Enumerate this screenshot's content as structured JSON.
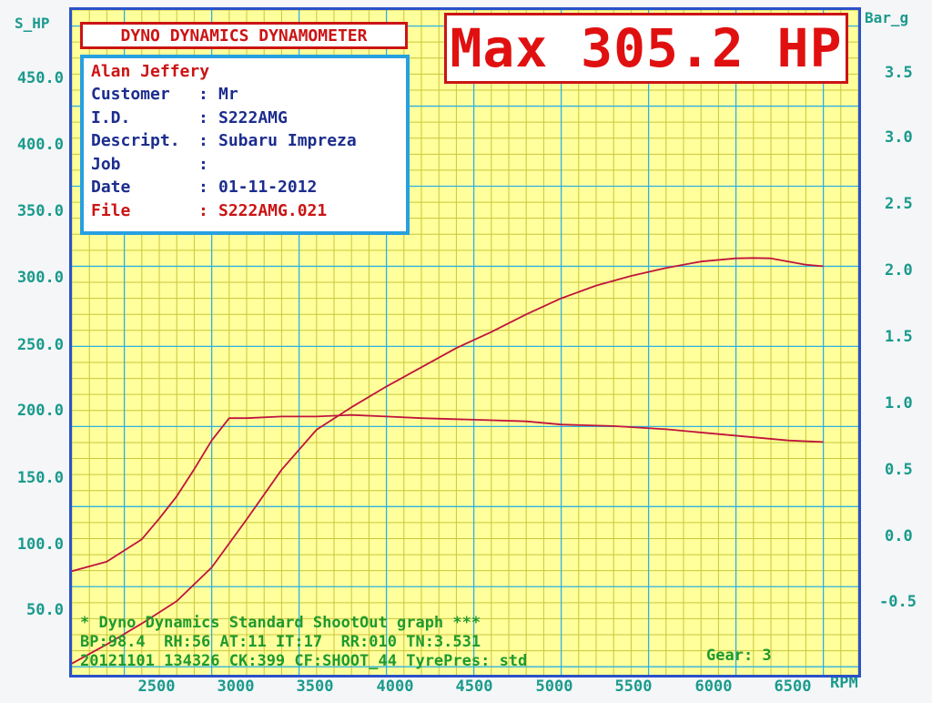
{
  "axes": {
    "left_title": "S_HP",
    "right_title": "Bar_g",
    "bottom_unit": "RPM",
    "left_ticks": [
      "450.0",
      "400.0",
      "350.0",
      "300.0",
      "250.0",
      "200.0",
      "150.0",
      "100.0",
      "50.0"
    ],
    "right_ticks": [
      "3.5",
      "3.0",
      "2.5",
      "2.0",
      "1.5",
      "1.0",
      "0.5",
      "0.0",
      "-0.5"
    ],
    "bottom_ticks": [
      "2500",
      "3000",
      "3500",
      "4000",
      "4500",
      "5000",
      "5500",
      "6000",
      "6500"
    ]
  },
  "header": {
    "title": "DYNO DYNAMICS DYNAMOMETER",
    "max": "Max 305.2 HP"
  },
  "info": {
    "name": "Alan Jeffery",
    "rows": [
      {
        "label": "Customer",
        "sep": ":",
        "value": "Mr"
      },
      {
        "label": "I.D.",
        "sep": ":",
        "value": "S222AMG"
      },
      {
        "label": "Descript.",
        "sep": ":",
        "value": "Subaru Impreza"
      },
      {
        "label": "Job",
        "sep": ":",
        "value": ""
      },
      {
        "label": "Date",
        "sep": ":",
        "value": "01-11-2012"
      },
      {
        "label": "File",
        "sep": ":",
        "value": "S222AMG.021"
      }
    ]
  },
  "footer": {
    "line1": "* Dyno Dynamics Standard ShootOut graph ***",
    "line2": "BP:98.4  RH:56 AT:11 IT:17  RR:010 TN:3.531",
    "line3": "20121101 134326 CK:399 CF:SHOOT_44 TyrePres: std",
    "gear": "Gear: 3"
  },
  "colors": {
    "grid_major": "#2fb0e0",
    "grid_minor": "#c8c63a",
    "plot_bg": "#ffff9c",
    "curve": "#c0143c",
    "frame": "#2a52c8",
    "text_red": "#cc1414",
    "text_blue": "#1c2d8e",
    "tick_teal": "#1a9a8c",
    "footer_green": "#1f9a2e"
  },
  "chart_data": {
    "type": "line",
    "title": "DYNO DYNAMICS DYNAMOMETER",
    "xlabel": "RPM",
    "ylabel": "S_HP",
    "y2label": "Bar_g",
    "xlim": [
      2200,
      6700
    ],
    "ylim": [
      45,
      460
    ],
    "y2lim": [
      -0.55,
      3.62
    ],
    "grid": true,
    "series": [
      {
        "name": "",
        "axis": "left",
        "unit": "S_HP",
        "x": [
          2200,
          2400,
          2600,
          2800,
          3000,
          3200,
          3400,
          3600,
          3800,
          4000,
          4200,
          4400,
          4600,
          4800,
          5000,
          5200,
          5400,
          5600,
          5800,
          6000,
          6100,
          6200,
          6300,
          6400,
          6500
        ],
        "y": [
          52,
          64,
          77,
          91,
          112,
          142,
          173,
          198,
          212,
          225,
          237,
          249,
          259,
          270,
          280,
          288,
          294,
          299,
          303,
          305,
          305.2,
          305,
          303,
          301,
          300
        ]
      },
      {
        "name": "",
        "axis": "right",
        "unit": "Bar_g",
        "x": [
          2200,
          2300,
          2400,
          2500,
          2600,
          2700,
          2800,
          2900,
          3000,
          3100,
          3200,
          3400,
          3600,
          3800,
          4000,
          4200,
          4500,
          4800,
          5000,
          5300,
          5600,
          5900,
          6100,
          6300,
          6500
        ],
        "y": [
          0.1,
          0.13,
          0.16,
          0.23,
          0.3,
          0.43,
          0.57,
          0.74,
          0.92,
          1.06,
          1.06,
          1.07,
          1.07,
          1.08,
          1.07,
          1.06,
          1.05,
          1.04,
          1.02,
          1.01,
          0.99,
          0.96,
          0.94,
          0.92,
          0.91
        ]
      }
    ]
  }
}
